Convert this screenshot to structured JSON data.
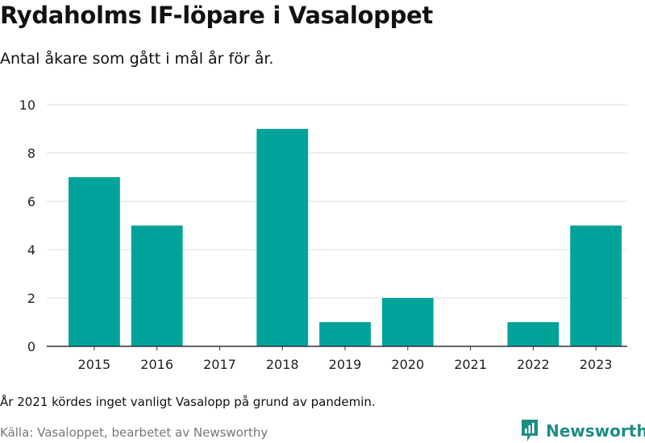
{
  "title": "Rydaholms IF-löpare i Vasaloppet",
  "subtitle": "Antal åkare som gått i mål år för år.",
  "note": "År 2021 kördes inget vanligt Vasalopp på grund av pandemin.",
  "source": "Källa: Vasaloppet, bearbetet av Newsworthy",
  "brand": {
    "name": "Newsworthy",
    "logo_icon": "newsworthy-chart-icon"
  },
  "colors": {
    "bar": "#00a39a",
    "brand": "#1e8c86",
    "grid": "#dddddd",
    "axis": "#333333"
  },
  "chart_data": {
    "type": "bar",
    "title": "Rydaholms IF-löpare i Vasaloppet",
    "subtitle": "Antal åkare som gått i mål år för år.",
    "categories": [
      "2015",
      "2016",
      "2017",
      "2018",
      "2019",
      "2020",
      "2021",
      "2022",
      "2023"
    ],
    "values": [
      7,
      5,
      0,
      9,
      1,
      2,
      0,
      1,
      5
    ],
    "xlabel": "",
    "ylabel": "",
    "ylim": [
      0,
      10
    ],
    "yticks": [
      0,
      2,
      4,
      6,
      8,
      10
    ],
    "grid": "horizontal",
    "legend": "none"
  }
}
